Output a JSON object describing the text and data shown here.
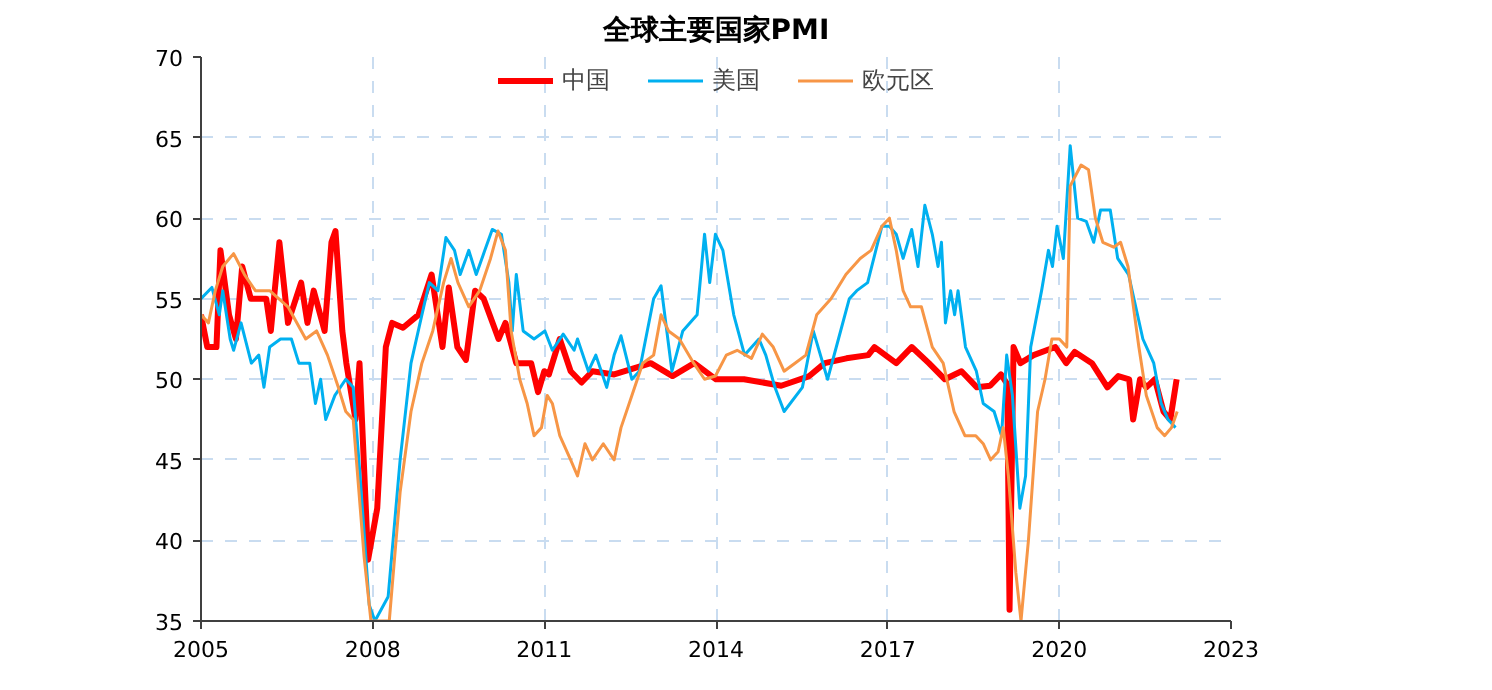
{
  "chart_data": {
    "type": "line",
    "title": "全球主要国家PMI",
    "xlim": [
      2005,
      2023
    ],
    "ylim": [
      35,
      70
    ],
    "xticks": [
      2005,
      2008,
      2011,
      2014,
      2017,
      2020,
      2023
    ],
    "yticks": [
      35,
      40,
      45,
      50,
      55,
      60,
      65,
      70
    ],
    "grid": true,
    "legend": "top",
    "series": [
      {
        "name": "中国",
        "color": "#ff0000",
        "x": [
          2005.0,
          2005.11,
          2005.27,
          2005.34,
          2005.49,
          2005.61,
          2005.72,
          2005.87,
          2006.14,
          2006.22,
          2006.37,
          2006.52,
          2006.75,
          2006.86,
          2006.97,
          2007.16,
          2007.28,
          2007.35,
          2007.47,
          2007.54,
          2007.7,
          2007.77,
          2007.92,
          2008.08,
          2008.23,
          2008.34,
          2008.53,
          2008.8,
          2009.03,
          2009.22,
          2009.33,
          2009.48,
          2009.63,
          2009.79,
          2009.94,
          2010.2,
          2010.32,
          2010.51,
          2010.77,
          2010.89,
          2011.0,
          2011.08,
          2011.27,
          2011.46,
          2011.65,
          2011.84,
          2012.22,
          2012.86,
          2013.24,
          2013.62,
          2014.0,
          2014.49,
          2015.14,
          2015.63,
          2015.9,
          2016.28,
          2016.66,
          2016.77,
          2017.15,
          2017.42,
          2017.72,
          2018.0,
          2018.29,
          2018.56,
          2018.79,
          2018.98,
          2019.09,
          2019.13,
          2019.2,
          2019.32,
          2019.55,
          2019.93,
          2020.12,
          2020.27,
          2020.57,
          2020.84,
          2021.03,
          2021.22,
          2021.29,
          2021.41,
          2021.52,
          2021.67,
          2021.82,
          2021.94,
          2022.05
        ],
        "values": [
          54,
          52,
          52,
          58,
          54,
          52.5,
          57,
          55,
          55,
          53,
          58.5,
          53.5,
          56,
          53.5,
          55.5,
          53,
          58.5,
          59.2,
          53,
          51,
          47.5,
          51,
          38.8,
          42,
          52,
          53.5,
          53.2,
          54,
          56.5,
          52,
          55.7,
          52,
          51.2,
          55.5,
          55,
          52.5,
          53.5,
          51,
          51,
          49.2,
          50.5,
          50.3,
          52.5,
          50.5,
          49.8,
          50.5,
          50.3,
          51,
          50.2,
          51,
          50,
          50,
          49.6,
          50.2,
          51,
          51.3,
          51.5,
          52,
          51,
          52,
          51,
          50,
          50.5,
          49.5,
          49.6,
          50.3,
          49.7,
          35.7,
          52,
          51,
          51.5,
          52,
          51,
          51.7,
          51,
          49.5,
          50.2,
          50,
          47.5,
          50,
          49.5,
          50,
          48,
          47.5,
          50
        ]
      },
      {
        "name": "美国",
        "color": "#00b0f0",
        "x": [
          2005.0,
          2005.19,
          2005.32,
          2005.38,
          2005.51,
          2005.57,
          2005.7,
          2005.88,
          2006.01,
          2006.1,
          2006.2,
          2006.39,
          2006.58,
          2006.71,
          2006.9,
          2007.0,
          2007.09,
          2007.18,
          2007.34,
          2007.53,
          2007.66,
          2007.78,
          2007.94,
          2008.04,
          2008.27,
          2008.48,
          2008.67,
          2008.86,
          2008.99,
          2009.14,
          2009.28,
          2009.43,
          2009.53,
          2009.68,
          2009.81,
          2009.96,
          2010.09,
          2010.25,
          2010.38,
          2010.44,
          2010.51,
          2010.63,
          2010.82,
          2011.01,
          2011.14,
          2011.33,
          2011.52,
          2011.58,
          2011.77,
          2011.9,
          2012.09,
          2012.22,
          2012.34,
          2012.53,
          2012.66,
          2012.91,
          2013.04,
          2013.23,
          2013.42,
          2013.67,
          2013.8,
          2013.89,
          2013.99,
          2014.12,
          2014.31,
          2014.5,
          2014.75,
          2014.87,
          2015.03,
          2015.19,
          2015.51,
          2015.7,
          2015.95,
          2016.14,
          2016.33,
          2016.46,
          2016.65,
          2016.9,
          2017.03,
          2017.15,
          2017.27,
          2017.42,
          2017.53,
          2017.65,
          2017.78,
          2017.88,
          2017.94,
          2018.01,
          2018.1,
          2018.17,
          2018.23,
          2018.36,
          2018.55,
          2018.67,
          2018.86,
          2018.99,
          2019.08,
          2019.18,
          2019.31,
          2019.41,
          2019.5,
          2019.69,
          2019.81,
          2019.88,
          2019.96,
          2020.07,
          2020.19,
          2020.32,
          2020.47,
          2020.6,
          2020.72,
          2020.89,
          2021.02,
          2021.21,
          2021.46,
          2021.65,
          2021.78,
          2021.9,
          2022.03
        ],
        "values": [
          55,
          55.7,
          54,
          55.5,
          52.5,
          51.8,
          53.5,
          51,
          51.5,
          49.5,
          52,
          52.5,
          52.5,
          51,
          51,
          48.5,
          50,
          47.5,
          49,
          50,
          49.5,
          44,
          36,
          35,
          36.5,
          45,
          51,
          54,
          56,
          55.5,
          58.8,
          58,
          56.5,
          58,
          56.5,
          58,
          59.3,
          59,
          56,
          53,
          56.5,
          53,
          52.5,
          53,
          51.8,
          52.8,
          51.8,
          52.5,
          50.5,
          51.5,
          49.5,
          51.5,
          52.7,
          50,
          50.5,
          55,
          55.8,
          50.5,
          53,
          54,
          59,
          56,
          59,
          58,
          54,
          51.5,
          52.5,
          51.5,
          49.5,
          48,
          49.5,
          53,
          50,
          52.5,
          55,
          55.5,
          56,
          59.5,
          59.5,
          59,
          57.5,
          59.3,
          57,
          60.8,
          59,
          57,
          58.5,
          53.5,
          55.5,
          54,
          55.5,
          52,
          50.5,
          48.5,
          48,
          46.5,
          51.5,
          49,
          42,
          44,
          52,
          55.5,
          58,
          57,
          59.5,
          57.5,
          64.5,
          60,
          59.8,
          58.5,
          60.5,
          60.5,
          57.5,
          56.5,
          52.5,
          51,
          48.5,
          47.5,
          47
        ]
      },
      {
        "name": "欧元区",
        "color": "#f79646",
        "x": [
          2005.0,
          2005.13,
          2005.25,
          2005.38,
          2005.57,
          2005.76,
          2005.95,
          2006.2,
          2006.52,
          2006.83,
          2007.02,
          2007.21,
          2007.4,
          2007.53,
          2007.66,
          2007.85,
          2007.97,
          2008.1,
          2008.29,
          2008.48,
          2008.67,
          2008.86,
          2009.05,
          2009.24,
          2009.37,
          2009.49,
          2009.68,
          2009.87,
          2010.06,
          2010.19,
          2010.32,
          2010.42,
          2010.57,
          2010.7,
          2010.82,
          2010.95,
          2011.05,
          2011.14,
          2011.27,
          2011.46,
          2011.58,
          2011.71,
          2011.84,
          2012.03,
          2012.22,
          2012.34,
          2012.53,
          2012.72,
          2012.91,
          2013.04,
          2013.17,
          2013.36,
          2013.61,
          2013.8,
          2013.99,
          2014.18,
          2014.37,
          2014.62,
          2014.81,
          2015.0,
          2015.19,
          2015.38,
          2015.57,
          2015.76,
          2016.01,
          2016.27,
          2016.52,
          2016.71,
          2016.9,
          2017.03,
          2017.15,
          2017.27,
          2017.4,
          2017.59,
          2017.78,
          2017.97,
          2018.16,
          2018.35,
          2018.54,
          2018.67,
          2018.8,
          2018.93,
          2019.02,
          2019.11,
          2019.24,
          2019.33,
          2019.46,
          2019.62,
          2019.75,
          2019.87,
          2020.0,
          2020.13,
          2020.19,
          2020.38,
          2020.51,
          2020.63,
          2020.76,
          2020.95,
          2021.07,
          2021.2,
          2021.39,
          2021.52,
          2021.71,
          2021.84,
          2021.96,
          2022.06
        ],
        "values": [
          54,
          53.5,
          55.5,
          57,
          57.8,
          56.5,
          55.5,
          55.5,
          54.5,
          52.5,
          53,
          51.5,
          49.5,
          48,
          47.5,
          39,
          35,
          35,
          35,
          43,
          48,
          51,
          53,
          56,
          57.5,
          56,
          54.5,
          55.5,
          57.5,
          59.2,
          58,
          53,
          50,
          48.5,
          46.5,
          47,
          49,
          48.5,
          46.5,
          45,
          44,
          46,
          45,
          46,
          45,
          47,
          49,
          51,
          51.5,
          54,
          53,
          52.5,
          51,
          50,
          50.2,
          51.5,
          51.8,
          51.3,
          52.8,
          52,
          50.5,
          51,
          51.5,
          54,
          55,
          56.5,
          57.5,
          58,
          59.5,
          60,
          58,
          55.5,
          54.5,
          54.5,
          52,
          51,
          48,
          46.5,
          46.5,
          46,
          45,
          45.5,
          47,
          44,
          38,
          35,
          40,
          48,
          50,
          52.5,
          52.5,
          52,
          62,
          63.3,
          63,
          60,
          58.5,
          58.2,
          58.5,
          57,
          52,
          49,
          47,
          46.5,
          47,
          48
        ]
      }
    ]
  }
}
